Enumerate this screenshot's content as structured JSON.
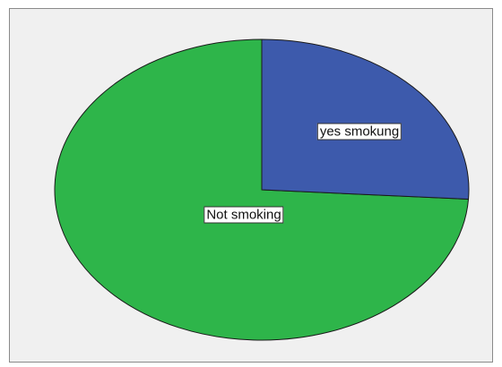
{
  "chart_data": {
    "type": "pie",
    "slices": [
      {
        "label": "Not smoking",
        "value": 74.0,
        "color": "#2eb54a"
      },
      {
        "label": "yes smokung",
        "value": 26.0,
        "color": "#3d5aac"
      }
    ],
    "legend": false
  }
}
